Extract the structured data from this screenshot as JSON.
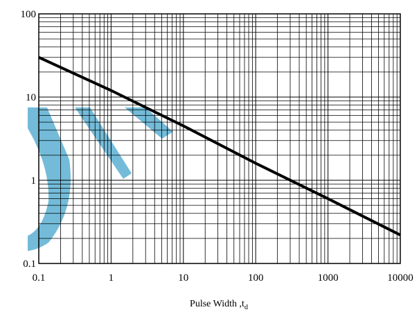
{
  "chart_data": {
    "type": "line",
    "x_scale": "log",
    "y_scale": "log",
    "xlim": [
      0.1,
      10000
    ],
    "ylim": [
      0.1,
      100
    ],
    "x_ticks": [
      "0.1",
      "1",
      "10",
      "100",
      "1000",
      "10000"
    ],
    "y_ticks": [
      "0.1",
      "1",
      "10",
      "100"
    ],
    "x_tick_values": [
      0.1,
      1,
      10,
      100,
      1000,
      10000
    ],
    "y_tick_values": [
      0.1,
      1,
      10,
      100
    ],
    "xlabel_main": "Pulse Width ,t",
    "xlabel_sub": "d",
    "ylabel": "",
    "title": "",
    "grid": "major and minor (log)",
    "series": [
      {
        "x": [
          0.1,
          1,
          10,
          100,
          1000,
          10000
        ],
        "y": [
          30,
          12,
          4.5,
          1.6,
          0.6,
          0.22
        ],
        "color": "#000000"
      }
    ],
    "colors": {
      "watermark": "#6cb8d8",
      "line": "#000000",
      "grid": "#000000"
    }
  }
}
